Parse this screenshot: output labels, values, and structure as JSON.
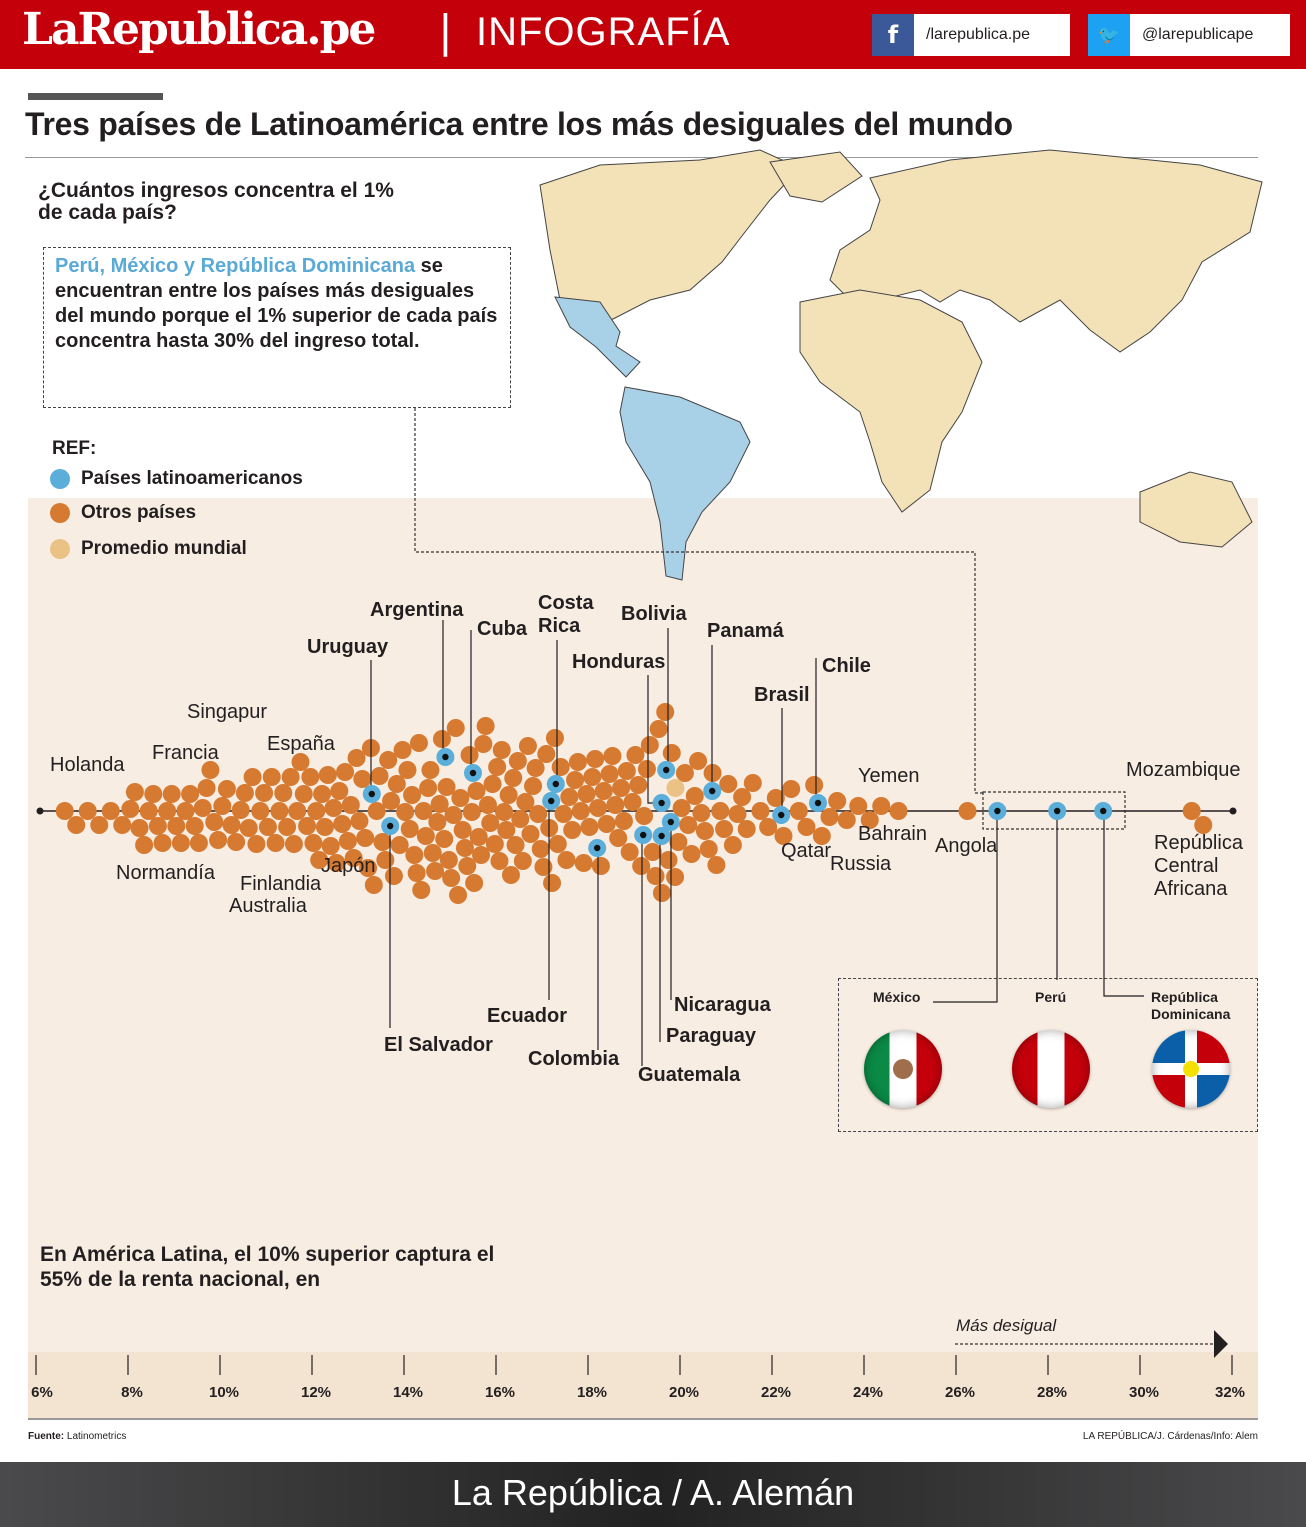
{
  "header": {
    "logo": "LaRepublica.pe",
    "separator": "|",
    "section": "INFOGRAFÍA",
    "facebook": {
      "icon": "facebook-icon",
      "glyph": "f",
      "handle": "/larepublica.pe",
      "color": "#3b5998"
    },
    "twitter": {
      "icon": "twitter-icon",
      "glyph": "🐦",
      "handle": "@larepublicape",
      "color": "#1da1f2"
    },
    "color": "#c4000b"
  },
  "title": "Tres países de Latinoamérica entre los más desiguales del mundo",
  "subtitle": "¿Cuántos ingresos concentra el 1% de cada país?",
  "intro": {
    "highlight": "Perú, México y República Dominicana",
    "text": " se encuentran entre los países más desiguales del mundo porque el 1% superior de cada país concentra hasta 30% del ingreso total."
  },
  "legend": {
    "title": "REF:",
    "items": [
      {
        "label": "Países latinoamericanos",
        "color": "#5aaed9"
      },
      {
        "label": "Otros países",
        "color": "#d67a32"
      },
      {
        "label": "Promedio mundial",
        "color": "#ebc286"
      }
    ]
  },
  "note": "En América Latina, el 10% superior captura el 55% de la renta nacional, en",
  "arrow_label": "Más desigual",
  "flags": [
    {
      "name": "México"
    },
    {
      "name": "Perú"
    },
    {
      "name": "República Dominicana"
    }
  ],
  "source_label": "Fuente:",
  "source": " Latinometrics",
  "credit": "LA REPÚBLICA/J. Cárdenas/Info: Alem",
  "footer": "La República /   A. Alemán",
  "chart_data": {
    "type": "scatter",
    "subtype": "beeswarm",
    "xlabel": "",
    "xlim": [
      6,
      32
    ],
    "x_ticks": [
      "6%",
      "8%",
      "10%",
      "12%",
      "14%",
      "16%",
      "18%",
      "20%",
      "22%",
      "24%",
      "26%",
      "28%",
      "30%",
      "32%"
    ],
    "unit": "% del ingreso concentrado por el 1% superior",
    "latin_countries": [
      {
        "name": "Uruguay",
        "value": 13.3
      },
      {
        "name": "El Salvador",
        "value": 13.7
      },
      {
        "name": "Argentina",
        "value": 14.9
      },
      {
        "name": "Cuba",
        "value": 15.5
      },
      {
        "name": "Ecuador",
        "value": 17.2
      },
      {
        "name": "Costa Rica",
        "value": 17.3
      },
      {
        "name": "Colombia",
        "value": 18.2
      },
      {
        "name": "Guatemala",
        "value": 19.2
      },
      {
        "name": "Paraguay",
        "value": 19.6
      },
      {
        "name": "Honduras",
        "value": 19.6
      },
      {
        "name": "Bolivia",
        "value": 19.7
      },
      {
        "name": "Nicaragua",
        "value": 19.8
      },
      {
        "name": "Panamá",
        "value": 20.7
      },
      {
        "name": "Brasil",
        "value": 22.2
      },
      {
        "name": "Chile",
        "value": 23.0
      },
      {
        "name": "México",
        "value": 26.9
      },
      {
        "name": "Perú",
        "value": 28.2
      },
      {
        "name": "República Dominicana",
        "value": 29.2
      }
    ],
    "world_average": {
      "label": "Promedio mundial",
      "value": 19.9
    },
    "other_labels": [
      "Holanda",
      "Singapur",
      "Francia",
      "España",
      "Normandía",
      "Finlandia",
      "Australia",
      "Japón",
      "Yemen",
      "Bahrain",
      "Qatar",
      "Russia",
      "Angola",
      "Mozambique",
      "República Central Africana"
    ],
    "other_countries_histogram": {
      "bin_width": 0.5,
      "bins": [
        [
          6.5,
          2
        ],
        [
          7,
          2
        ],
        [
          7.5,
          2
        ],
        [
          8,
          5
        ],
        [
          8.5,
          5
        ],
        [
          9,
          5
        ],
        [
          9.5,
          6
        ],
        [
          10,
          5
        ],
        [
          10.5,
          6
        ],
        [
          11,
          6
        ],
        [
          11.5,
          7
        ],
        [
          12,
          8
        ],
        [
          12.5,
          8
        ],
        [
          13,
          8
        ],
        [
          13.5,
          8
        ],
        [
          14,
          10
        ],
        [
          14.5,
          10
        ],
        [
          15,
          10
        ],
        [
          15.5,
          10
        ],
        [
          16,
          10
        ],
        [
          16.5,
          9
        ],
        [
          17,
          8
        ],
        [
          17.5,
          8
        ],
        [
          18,
          8
        ],
        [
          18.5,
          8
        ],
        [
          19,
          8
        ],
        [
          19.5,
          7
        ],
        [
          20,
          7
        ],
        [
          20.5,
          6
        ],
        [
          21,
          5
        ],
        [
          21.5,
          3
        ],
        [
          22,
          3
        ],
        [
          22.5,
          3
        ],
        [
          23,
          3
        ],
        [
          23.5,
          2
        ],
        [
          24,
          2
        ],
        [
          24.5,
          1
        ],
        [
          26,
          1
        ],
        [
          31,
          2
        ]
      ]
    }
  }
}
